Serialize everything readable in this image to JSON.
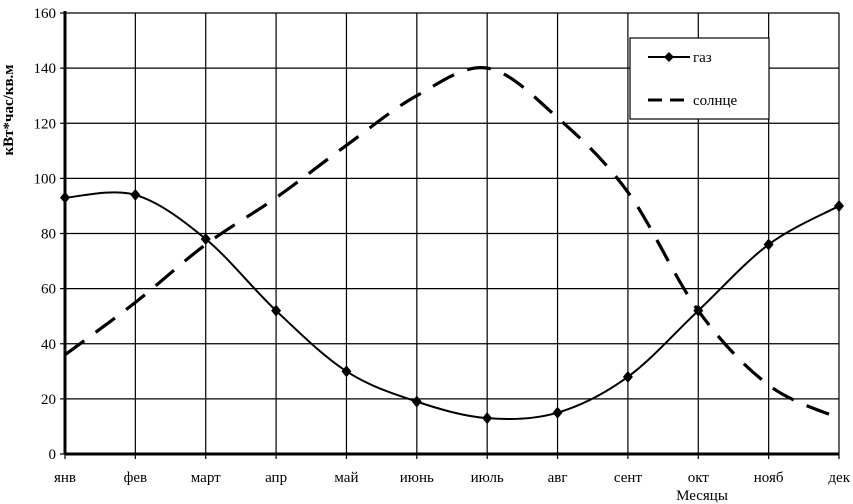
{
  "chart_data": {
    "type": "line",
    "xlabel": "Месяцы",
    "ylabel": "кВт*час/кв.м",
    "categories": [
      "янв",
      "фев",
      "март",
      "апр",
      "май",
      "июнь",
      "июль",
      "авг",
      "сент",
      "окт",
      "нояб",
      "дек"
    ],
    "ylim": [
      0,
      160
    ],
    "yticks": [
      "0",
      "20",
      "40",
      "60",
      "80",
      "100",
      "120",
      "140",
      "160"
    ],
    "grid": true,
    "legend_position": "top-right",
    "series": [
      {
        "name": "газ",
        "style": "solid-diamond",
        "color": "#000000",
        "values": [
          93,
          94,
          78,
          52,
          30,
          19,
          13,
          15,
          28,
          52,
          76,
          90
        ]
      },
      {
        "name": "солнце",
        "style": "dashed",
        "color": "#000000",
        "values": [
          36,
          55,
          76,
          93,
          112,
          130,
          140,
          122,
          95,
          52,
          25,
          13
        ]
      }
    ]
  }
}
